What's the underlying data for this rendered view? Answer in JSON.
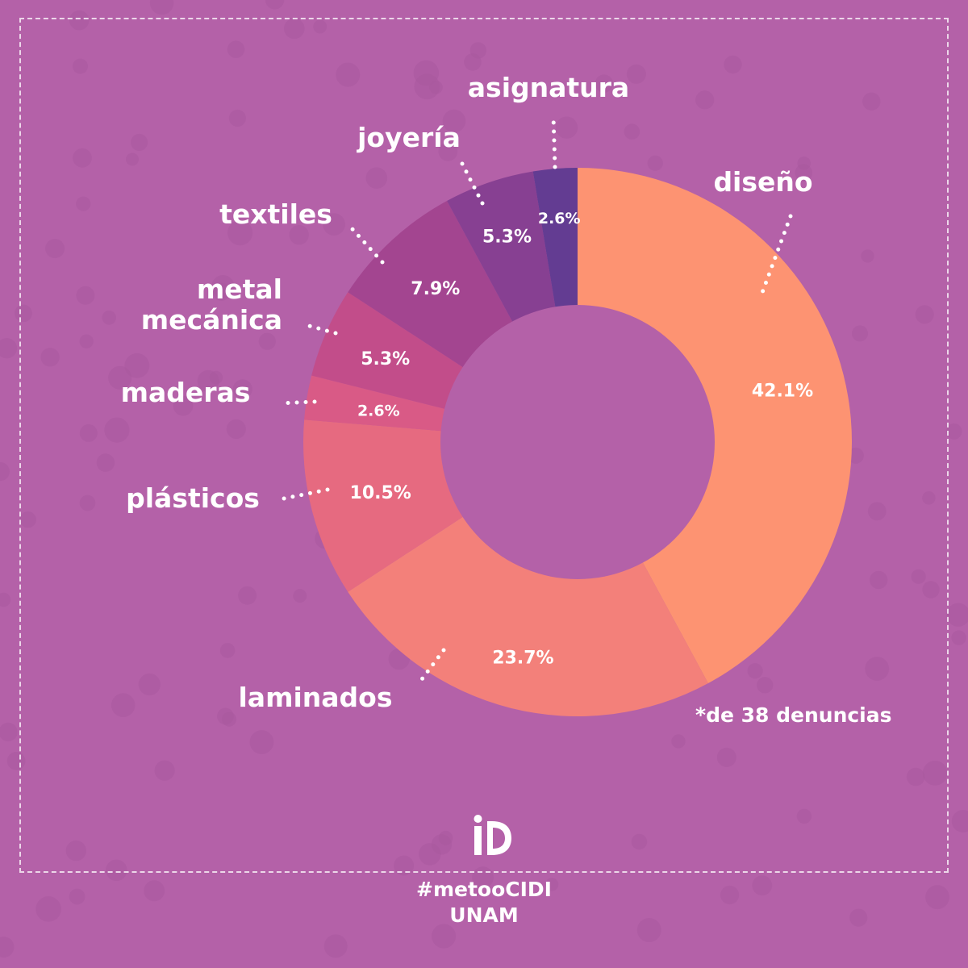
{
  "colors": {
    "background": "#b461a8",
    "dots": "#a9599e",
    "text": "#ffffff"
  },
  "chart_data": {
    "type": "pie",
    "variant": "donut",
    "start_angle_deg": 0,
    "direction": "clockwise",
    "slices": [
      {
        "label": "diseño",
        "value": 42.1,
        "value_label": "42.1%",
        "color": "#fd9372"
      },
      {
        "label": "laminados",
        "value": 23.7,
        "value_label": "23.7%",
        "color": "#f3807a"
      },
      {
        "label": "plásticos",
        "value": 10.5,
        "value_label": "10.5%",
        "color": "#e66a80"
      },
      {
        "label": "maderas",
        "value": 2.6,
        "value_label": "2.6%",
        "color": "#d95a86"
      },
      {
        "label": "metal\nmecánica",
        "value": 5.3,
        "value_label": "5.3%",
        "color": "#c24d8a"
      },
      {
        "label": "textiles",
        "value": 7.9,
        "value_label": "7.9%",
        "color": "#a34590"
      },
      {
        "label": "joyería",
        "value": 5.3,
        "value_label": "5.3%",
        "color": "#874092"
      },
      {
        "label": "asignatura",
        "value": 2.6,
        "value_label": "2.6%",
        "color": "#633c92"
      }
    ],
    "note": "*de 38 denuncias"
  },
  "logo": {
    "text": "iD",
    "icon": "cidi-logo"
  },
  "footer": {
    "hashtag": "#metooCIDI",
    "org": "UNAM"
  }
}
